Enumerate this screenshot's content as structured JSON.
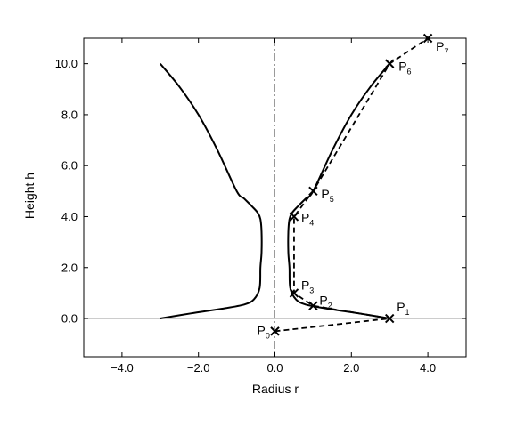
{
  "chart_data": {
    "type": "line",
    "title": "",
    "xlabel": "Radius r",
    "ylabel": "Height h",
    "xlim": [
      -5.0,
      5.0
    ],
    "ylim": [
      -1.5,
      11.0
    ],
    "x_ticks": [
      -4.0,
      -2.0,
      0.0,
      2.0,
      4.0
    ],
    "x_tick_labels": [
      "−4.0",
      "−2.0",
      "0.0",
      "2.0",
      "4.0"
    ],
    "y_ticks": [
      0.0,
      2.0,
      4.0,
      6.0,
      8.0,
      10.0
    ],
    "y_tick_labels": [
      "0.0",
      "2.0",
      "4.0",
      "6.0",
      "8.0",
      "10.0"
    ],
    "grid": false,
    "axis_of_symmetry": {
      "x": 0.0,
      "style": "dash-dot"
    },
    "horizontal_line": {
      "y": 0.0
    },
    "control_points": [
      {
        "label": "P",
        "sub": "0",
        "x": 0.0,
        "y": -0.5
      },
      {
        "label": "P",
        "sub": "1",
        "x": 3.0,
        "y": 0.0
      },
      {
        "label": "P",
        "sub": "2",
        "x": 1.0,
        "y": 0.5
      },
      {
        "label": "P",
        "sub": "3",
        "x": 0.5,
        "y": 1.0
      },
      {
        "label": "P",
        "sub": "4",
        "x": 0.5,
        "y": 4.0
      },
      {
        "label": "P",
        "sub": "5",
        "x": 1.0,
        "y": 5.0
      },
      {
        "label": "P",
        "sub": "6",
        "x": 3.0,
        "y": 10.0
      },
      {
        "label": "P",
        "sub": "7",
        "x": 4.0,
        "y": 11.0
      }
    ],
    "series": [
      {
        "style": "solid",
        "x": [
          3.0,
          2.2,
          1.4,
          0.8,
          0.55,
          0.4,
          0.38,
          0.35,
          0.35,
          0.38,
          0.45,
          0.6,
          0.8,
          1.0,
          1.5,
          2.0,
          2.5,
          3.0
        ],
        "y": [
          0.0,
          0.2,
          0.38,
          0.55,
          0.75,
          1.2,
          2.0,
          2.6,
          3.4,
          3.9,
          4.15,
          4.4,
          4.7,
          5.0,
          6.6,
          8.0,
          9.1,
          10.0
        ]
      },
      {
        "style": "solid",
        "x": [
          -3.0,
          -2.2,
          -1.4,
          -0.8,
          -0.55,
          -0.4,
          -0.38,
          -0.35,
          -0.35,
          -0.38,
          -0.45,
          -0.6,
          -0.8,
          -1.0,
          -1.5,
          -2.0,
          -2.5,
          -3.0
        ],
        "y": [
          0.0,
          0.2,
          0.38,
          0.55,
          0.75,
          1.2,
          2.0,
          2.6,
          3.4,
          3.9,
          4.15,
          4.4,
          4.7,
          5.0,
          6.6,
          8.0,
          9.1,
          10.0
        ]
      }
    ]
  }
}
